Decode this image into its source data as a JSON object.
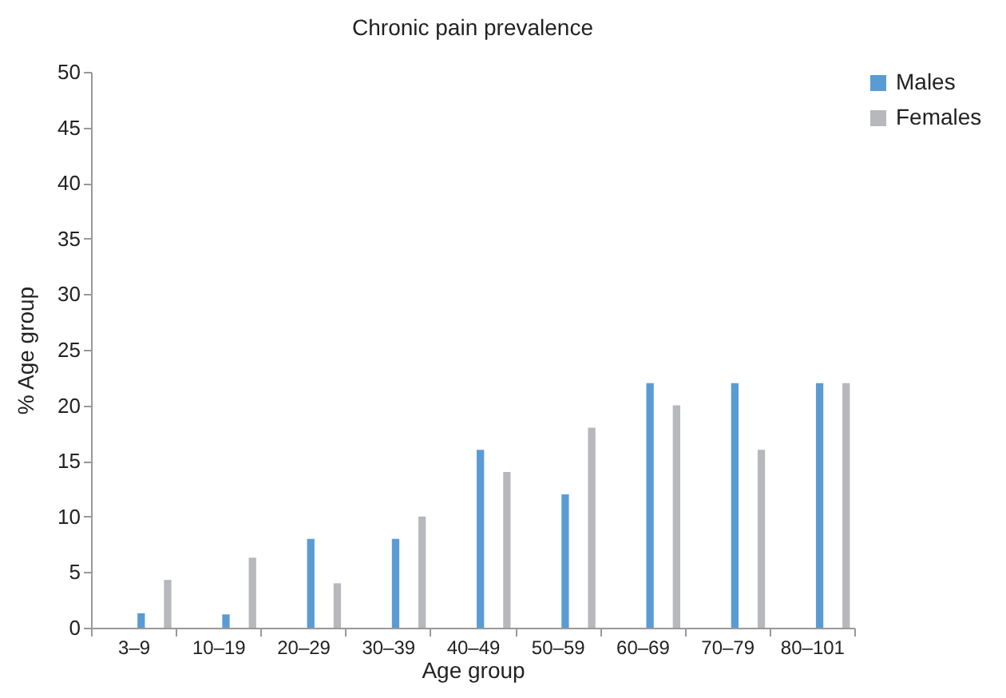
{
  "chart_data": {
    "type": "bar",
    "title": "Chronic pain prevalence",
    "xlabel": "Age group",
    "ylabel": "% Age group",
    "categories": [
      "3–9",
      "10–19",
      "20–29",
      "30–39",
      "40–49",
      "50–59",
      "60–69",
      "70–79",
      "80–101"
    ],
    "series": [
      {
        "name": "Males",
        "color": "#5b9bd5",
        "values": [
          1.3,
          1.2,
          8,
          8,
          16,
          12,
          22,
          22,
          22
        ]
      },
      {
        "name": "Females",
        "color": "#b7b8bc",
        "values": [
          4.3,
          6.3,
          4,
          10,
          14,
          18,
          20,
          16,
          22
        ]
      }
    ],
    "ylim": [
      0,
      50
    ],
    "yticks": [
      0,
      5,
      10,
      15,
      20,
      25,
      30,
      35,
      40,
      45,
      50
    ],
    "grid": false,
    "legend": "right"
  }
}
